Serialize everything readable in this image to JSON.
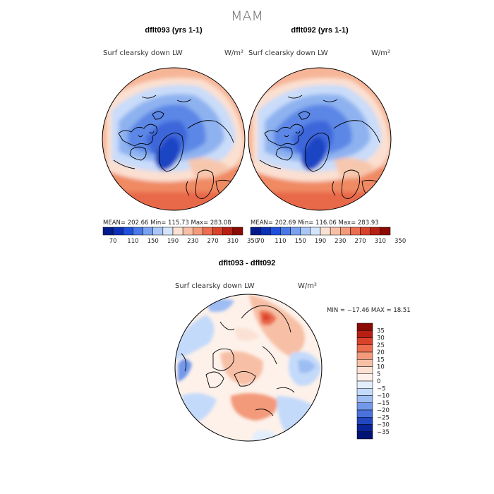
{
  "page": {
    "title": "MAM"
  },
  "panels": [
    {
      "id": "panel-left",
      "title": "dflt093 (yrs 1-1)",
      "variable": "Surf clearsky down LW",
      "units": "W/m²",
      "stats": {
        "mean": "202.66",
        "min": "115.73",
        "max": "283.08"
      },
      "stats_text": "MEAN= 202.66   Min= 115.73   Max= 283.08"
    },
    {
      "id": "panel-right",
      "title": "dflt092 (yrs 1-1)",
      "variable": "Surf clearsky down LW",
      "units": "W/m²",
      "stats": {
        "mean": "202.69",
        "min": "116.06",
        "max": "283.93"
      },
      "stats_text": "MEAN= 202.69   Min= 116.06   Max= 283.93"
    }
  ],
  "top_colorbar": {
    "labels": [
      "70",
      "110",
      "150",
      "190",
      "230",
      "270",
      "310",
      "350"
    ],
    "colors": [
      "#001a8c",
      "#0b2fb5",
      "#1f4fdb",
      "#4a78e8",
      "#7aa1f0",
      "#a9c6f6",
      "#d3e4fb",
      "#fbe1d3",
      "#f7c0a6",
      "#f39a7a",
      "#ea6e4f",
      "#d9432b",
      "#b81f13",
      "#8a0a04"
    ]
  },
  "diff_panel": {
    "title": "dflt093 - dflt092",
    "variable": "Surf clearsky down LW",
    "units": "W/m²",
    "stats": {
      "min": "-17.46",
      "max": "18.51"
    },
    "stats_text": "MIN = −17.46  MAX =  18.51"
  },
  "diff_colorbar": {
    "labels": [
      "35",
      "30",
      "25",
      "20",
      "15",
      "10",
      "5",
      "0",
      "−5",
      "−10",
      "−15",
      "−20",
      "−25",
      "−30",
      "−35"
    ],
    "colors": [
      "#8a0a04",
      "#b81f13",
      "#d9432b",
      "#ea6e4f",
      "#f39a7a",
      "#f7c0a6",
      "#fbe1d3",
      "#fdf1ea",
      "#e3eefc",
      "#c4dafa",
      "#9dbdf3",
      "#7298ea",
      "#4a72dc",
      "#2347bf",
      "#0a2498",
      "#001373"
    ]
  },
  "colors": {
    "land_outline": "#000000",
    "background": "#ffffff"
  }
}
